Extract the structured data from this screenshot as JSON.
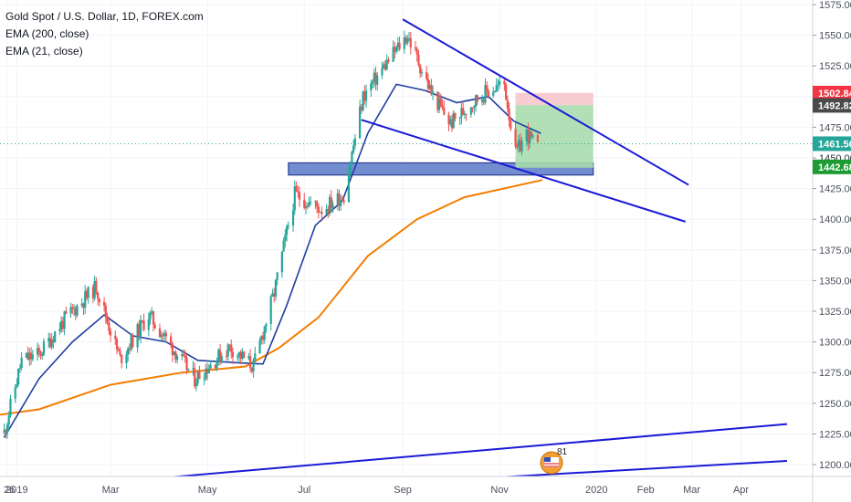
{
  "chart_data": {
    "type": "candlestick",
    "title": "Gold Spot / U.S. Dollar, 1D, FOREX.com",
    "indicators": [
      "EMA (200, close)",
      "EMA (21, close)"
    ],
    "ylim": [
      1190,
      1580
    ],
    "y_ticks": [
      1575,
      1550,
      1525,
      1500,
      1475,
      1450,
      1425,
      1400,
      1375,
      1350,
      1325,
      1300,
      1275,
      1250,
      1225,
      1200
    ],
    "x_ticks": [
      {
        "label": "26",
        "date": "2018-12-26"
      },
      {
        "label": "2019",
        "date": "2019-01-01"
      },
      {
        "label": "Mar",
        "date": "2019-03-01"
      },
      {
        "label": "May",
        "date": "2019-05-01"
      },
      {
        "label": "Jul",
        "date": "2019-07-01"
      },
      {
        "label": "Sep",
        "date": "2019-09-01"
      },
      {
        "label": "Nov",
        "date": "2019-11-01"
      },
      {
        "label": "2020",
        "date": "2020-01-01"
      },
      {
        "label": "Feb",
        "date": "2020-02-01"
      },
      {
        "label": "Mar",
        "date": "2020-03-01"
      },
      {
        "label": "Apr",
        "date": "2020-04-01"
      }
    ],
    "x_range": [
      "2018-12-26",
      "2020-04-26"
    ],
    "price_series": [
      {
        "date": "2018-12-24",
        "price": 1226
      },
      {
        "date": "2019-01-04",
        "price": 1285
      },
      {
        "date": "2019-01-15",
        "price": 1290
      },
      {
        "date": "2019-01-31",
        "price": 1318
      },
      {
        "date": "2019-02-20",
        "price": 1345
      },
      {
        "date": "2019-03-07",
        "price": 1286
      },
      {
        "date": "2019-03-25",
        "price": 1322
      },
      {
        "date": "2019-04-12",
        "price": 1290
      },
      {
        "date": "2019-04-23",
        "price": 1270
      },
      {
        "date": "2019-05-15",
        "price": 1296
      },
      {
        "date": "2019-05-30",
        "price": 1280
      },
      {
        "date": "2019-06-12",
        "price": 1340
      },
      {
        "date": "2019-06-25",
        "price": 1420
      },
      {
        "date": "2019-07-12",
        "price": 1408
      },
      {
        "date": "2019-07-26",
        "price": 1420
      },
      {
        "date": "2019-08-07",
        "price": 1500
      },
      {
        "date": "2019-08-26",
        "price": 1535
      },
      {
        "date": "2019-09-04",
        "price": 1550
      },
      {
        "date": "2019-09-19",
        "price": 1503
      },
      {
        "date": "2019-10-01",
        "price": 1478
      },
      {
        "date": "2019-10-15",
        "price": 1495
      },
      {
        "date": "2019-10-25",
        "price": 1505
      },
      {
        "date": "2019-11-04",
        "price": 1510
      },
      {
        "date": "2019-11-11",
        "price": 1453
      },
      {
        "date": "2019-11-18",
        "price": 1470
      },
      {
        "date": "2019-11-25",
        "price": 1457
      }
    ],
    "ema21": [
      {
        "date": "2018-12-24",
        "price": 1222
      },
      {
        "date": "2019-01-15",
        "price": 1270
      },
      {
        "date": "2019-02-05",
        "price": 1300
      },
      {
        "date": "2019-02-25",
        "price": 1322
      },
      {
        "date": "2019-03-15",
        "price": 1305
      },
      {
        "date": "2019-04-05",
        "price": 1300
      },
      {
        "date": "2019-04-25",
        "price": 1285
      },
      {
        "date": "2019-05-20",
        "price": 1283
      },
      {
        "date": "2019-06-05",
        "price": 1282
      },
      {
        "date": "2019-06-20",
        "price": 1330
      },
      {
        "date": "2019-07-08",
        "price": 1395
      },
      {
        "date": "2019-07-25",
        "price": 1415
      },
      {
        "date": "2019-08-10",
        "price": 1470
      },
      {
        "date": "2019-08-28",
        "price": 1510
      },
      {
        "date": "2019-09-15",
        "price": 1505
      },
      {
        "date": "2019-10-05",
        "price": 1495
      },
      {
        "date": "2019-10-25",
        "price": 1500
      },
      {
        "date": "2019-11-10",
        "price": 1480
      },
      {
        "date": "2019-11-27",
        "price": 1470
      }
    ],
    "ema200": [
      {
        "date": "2018-12-01",
        "price": 1237
      },
      {
        "date": "2019-01-15",
        "price": 1245
      },
      {
        "date": "2019-03-01",
        "price": 1265
      },
      {
        "date": "2019-04-15",
        "price": 1275
      },
      {
        "date": "2019-05-25",
        "price": 1280
      },
      {
        "date": "2019-06-15",
        "price": 1295
      },
      {
        "date": "2019-07-10",
        "price": 1320
      },
      {
        "date": "2019-08-10",
        "price": 1370
      },
      {
        "date": "2019-09-10",
        "price": 1400
      },
      {
        "date": "2019-10-10",
        "price": 1418
      },
      {
        "date": "2019-11-28",
        "price": 1432
      }
    ],
    "trendlines": [
      {
        "name": "upper-channel",
        "from": {
          "date": "2019-09-01",
          "price": 1563
        },
        "to": {
          "date": "2020-02-28",
          "price": 1428
        }
      },
      {
        "name": "lower-channel",
        "from": {
          "date": "2019-08-06",
          "price": 1481
        },
        "to": {
          "date": "2020-02-26",
          "price": 1398
        }
      },
      {
        "name": "support-line-1",
        "from": {
          "date": "2019-04-10",
          "price": 1190
        },
        "to": {
          "date": "2020-04-30",
          "price": 1233
        }
      },
      {
        "name": "support-line-2",
        "from": {
          "date": "2019-11-05",
          "price": 1190
        },
        "to": {
          "date": "2020-04-30",
          "price": 1203
        }
      }
    ],
    "zones": [
      {
        "name": "support-zone",
        "from": "2019-06-21",
        "to": "2019-12-30",
        "low": 1436,
        "high": 1446,
        "color": "#5a7ac8"
      },
      {
        "name": "stop-zone",
        "from": "2019-11-11",
        "to": "2019-12-30",
        "low": 1493,
        "high": 1503,
        "color": "#f6c8cc"
      },
      {
        "name": "target-zone",
        "from": "2019-11-11",
        "to": "2019-12-30",
        "low": 1442,
        "high": 1493,
        "color": "#a8dcae"
      }
    ],
    "price_tags": [
      {
        "label": "1502.84",
        "value": 1502.84,
        "color": "#f23645"
      },
      {
        "label": "1492.82",
        "value": 1492.82,
        "color": "#4a4a4a"
      },
      {
        "label": "1461.56",
        "value": 1461.56,
        "color": "#26a69a"
      },
      {
        "label": "1442.68",
        "value": 1442.68,
        "color": "#1e9b32"
      }
    ],
    "partial_tick_label": "1450.00",
    "current_price": 1461.56,
    "grid": true,
    "colors": {
      "up": "#26a69a",
      "down": "#ef5350",
      "ema21": "#1e3fa0",
      "ema200": "#f57c00",
      "trend": "#1a1ad6"
    }
  },
  "badge": {
    "number": "81"
  }
}
